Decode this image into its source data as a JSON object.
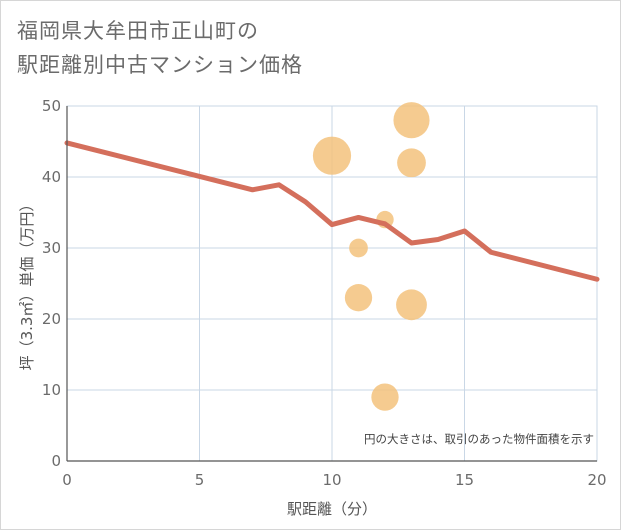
{
  "chart_data": {
    "type": "scatter",
    "title": "福岡県大牟田市正山町の\n駅距離別中古マンション価格",
    "xlabel": "駅距離（分）",
    "ylabel": "坪（3.3㎡）単価（万円）",
    "note": "円の大きさは、取引のあった物件面積を示す",
    "xlim": [
      0,
      20
    ],
    "ylim": [
      0,
      50
    ],
    "x_ticks": [
      "0",
      "5",
      "10",
      "15",
      "20"
    ],
    "y_ticks": [
      "0",
      "10",
      "20",
      "30",
      "40",
      "50"
    ],
    "x_tick_values": [
      0,
      5,
      10,
      15,
      20
    ],
    "y_tick_values": [
      0,
      10,
      20,
      30,
      40,
      50
    ],
    "grid": true,
    "colors": {
      "bubble": "#f3c27d",
      "line": "#d46f5c",
      "grid": "#c9d7e6"
    },
    "bubbles": [
      {
        "x": 10,
        "y": 43,
        "size": 3.2
      },
      {
        "x": 13,
        "y": 48,
        "size": 2.8
      },
      {
        "x": 13,
        "y": 42,
        "size": 1.6
      },
      {
        "x": 11,
        "y": 30,
        "size": 0.5
      },
      {
        "x": 12,
        "y": 34,
        "size": 0.4
      },
      {
        "x": 11,
        "y": 23,
        "size": 1.4
      },
      {
        "x": 13,
        "y": 22,
        "size": 1.9
      },
      {
        "x": 12,
        "y": 9,
        "size": 1.4
      }
    ],
    "trend_line": {
      "x": [
        0,
        7,
        8,
        9,
        10,
        11,
        12,
        13,
        14,
        15,
        16,
        20
      ],
      "y": [
        44.8,
        38.2,
        38.9,
        36.5,
        33.3,
        34.3,
        33.4,
        30.7,
        31.2,
        32.4,
        29.4,
        25.6
      ]
    }
  }
}
